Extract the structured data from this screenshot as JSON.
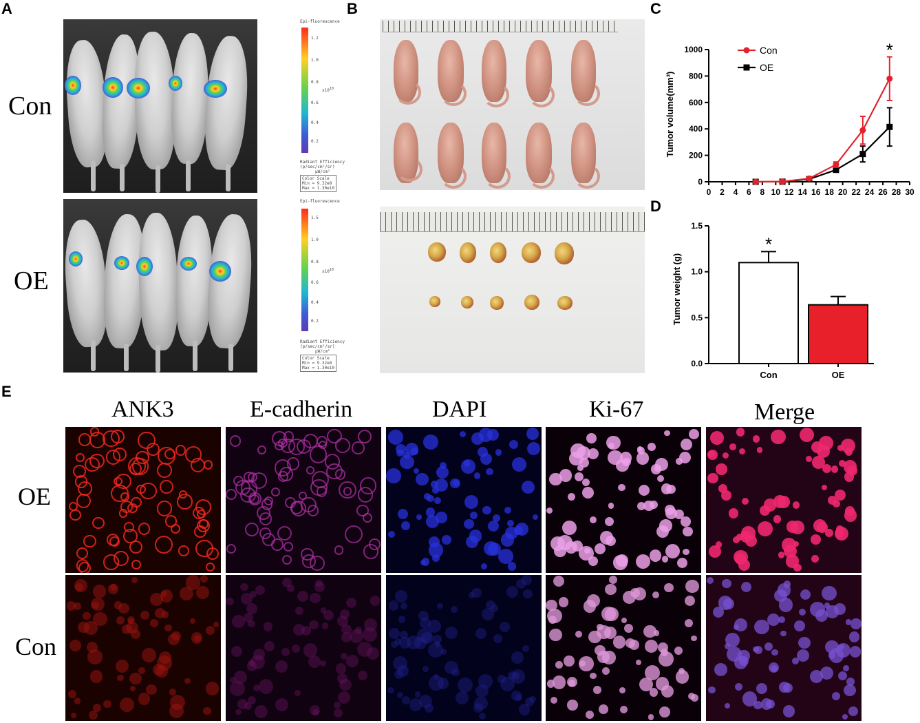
{
  "panel_labels": {
    "A": "A",
    "B": "B",
    "C": "C",
    "D": "D",
    "E": "E"
  },
  "panel_a": {
    "row_labels": [
      "Con",
      "OE"
    ],
    "scale_title": "Epi-fluorescence",
    "scale_unit": "x10",
    "scale_exp": "10",
    "scale_ticks_top": [
      "1.2",
      "1.0",
      "0.8",
      "0.6",
      "0.4",
      "0.2"
    ],
    "scale_ticks_bottom": [
      "1.5",
      "1.0",
      "0.8",
      "0.6",
      "0.4",
      "0.2"
    ],
    "caption_line1": "Radiant Efficiency",
    "caption_line2": "(p/sec/cm²/sr)",
    "caption_line3": "µW/cm²",
    "color_scale": [
      "Color Scale",
      "Min = 9.32e8",
      "Max = 1.30e10"
    ]
  },
  "panel_e": {
    "column_headers": [
      "ANK3",
      "E-cadherin",
      "DAPI",
      "Ki-67",
      "Merge"
    ],
    "row_labels": [
      "OE",
      "Con"
    ]
  },
  "colors": {
    "con": "#e5222b",
    "oe": "#000000",
    "bar_oe_fill": "#e8202a"
  },
  "chart_data": [
    {
      "id": "C",
      "type": "line",
      "title": "",
      "xlabel": "",
      "ylabel": "Tumor volume(mm³)",
      "xlim": [
        0,
        30
      ],
      "ylim": [
        0,
        1000
      ],
      "xticks": [
        0,
        2,
        4,
        6,
        8,
        10,
        12,
        14,
        16,
        18,
        20,
        22,
        24,
        26,
        28,
        30
      ],
      "yticks": [
        0,
        200,
        400,
        600,
        800,
        1000
      ],
      "legend_position": "top-left",
      "annotation": "*",
      "series": [
        {
          "name": "Con",
          "color": "#e5222b",
          "marker": "circle",
          "x": [
            7,
            11,
            15,
            19,
            23,
            27
          ],
          "y": [
            0,
            2,
            25,
            130,
            390,
            780
          ],
          "err": [
            0,
            2,
            8,
            20,
            105,
            165
          ]
        },
        {
          "name": "OE",
          "color": "#000000",
          "marker": "square",
          "x": [
            7,
            11,
            15,
            19,
            23,
            27
          ],
          "y": [
            0,
            1,
            20,
            90,
            210,
            415
          ],
          "err": [
            0,
            1,
            6,
            15,
            60,
            145
          ]
        }
      ]
    },
    {
      "id": "D",
      "type": "bar",
      "title": "",
      "xlabel": "",
      "ylabel": "Tumor weight (g)",
      "ylim": [
        0,
        1.5
      ],
      "yticks": [
        "0.0",
        "0.5",
        "1.0",
        "1.5"
      ],
      "categories": [
        "Con",
        "OE"
      ],
      "values": [
        1.1,
        0.64
      ],
      "errors": [
        0.12,
        0.09
      ],
      "fills": [
        "#ffffff",
        "#e8202a"
      ],
      "annotation": "*"
    }
  ]
}
